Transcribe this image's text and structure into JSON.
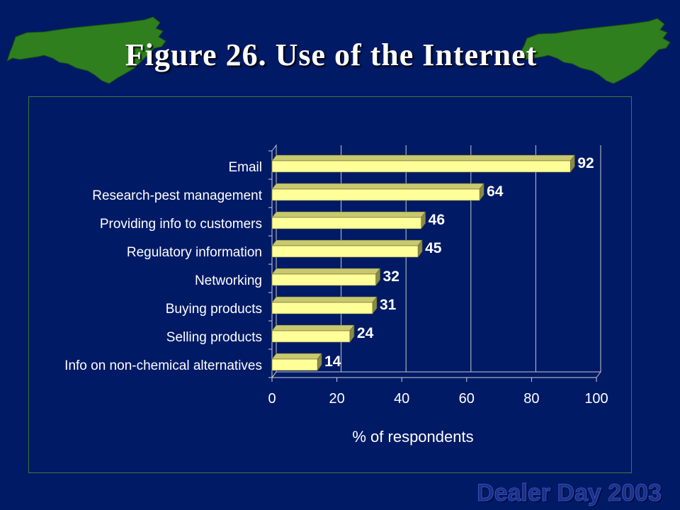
{
  "slide": {
    "title": "Figure 26. Use of the Internet",
    "footer": "Dealer Day 2003",
    "map_left_icon": "north-carolina-map",
    "map_right_icon": "north-carolina-map"
  },
  "colors": {
    "background": "#001a66",
    "map_fill": "#2f7f1f",
    "bar_face": "#ffff99",
    "bar_top": "#c8c86e",
    "bar_side": "#8a8a48",
    "footer_text": "#1a2f8a"
  },
  "chart_data": {
    "type": "bar",
    "orientation": "horizontal",
    "style": "3d",
    "categories": [
      "Email",
      "Research-pest management",
      "Providing info to customers",
      "Regulatory information",
      "Networking",
      "Buying products",
      "Selling products",
      "Info on non-chemical alternatives"
    ],
    "values": [
      92,
      64,
      46,
      45,
      32,
      31,
      24,
      14
    ],
    "data_labels": [
      "92",
      "64",
      "46",
      "45",
      "32",
      "31",
      "24",
      "14"
    ],
    "xlabel": "% of respondents",
    "xlim": [
      0,
      100
    ],
    "xticks": [
      0,
      20,
      40,
      60,
      80,
      100
    ],
    "grid": "vertical",
    "legend": "none"
  }
}
